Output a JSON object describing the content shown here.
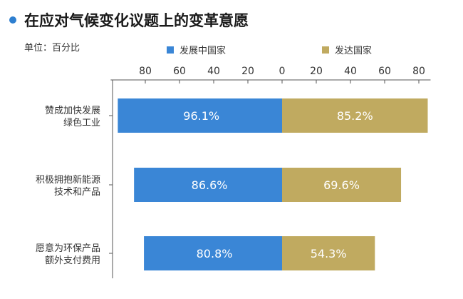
{
  "title": "在应对气候变化议题上的变革意愿",
  "unit": "单位：百分比",
  "colors": {
    "developing": "#3a86d6",
    "developed": "#c0aa60",
    "title_dot": "#2e7fd0"
  },
  "chart_data": {
    "type": "bar",
    "orientation": "horizontal-diverging",
    "categories": [
      [
        "赞成加快发展",
        "绿色工业"
      ],
      [
        "积极拥抱新能源",
        "技术和产品"
      ],
      [
        "愿意为环保产品",
        "额外支付费用"
      ]
    ],
    "series": [
      {
        "name": "发展中国家",
        "values": [
          96.1,
          86.6,
          80.8
        ],
        "labels": [
          "96.1%",
          "86.6%",
          "80.8%"
        ],
        "side": "left"
      },
      {
        "name": "发达国家",
        "values": [
          85.2,
          69.6,
          54.3
        ],
        "labels": [
          "85.2%",
          "69.6%",
          "54.3%"
        ],
        "side": "right"
      }
    ],
    "xticks_left": [
      "80",
      "60",
      "40",
      "20",
      "0"
    ],
    "xticks_right": [
      "20",
      "40",
      "60",
      "80"
    ],
    "xlim": [
      -96.1,
      85.2
    ],
    "grid": false,
    "legend_position": "top"
  }
}
